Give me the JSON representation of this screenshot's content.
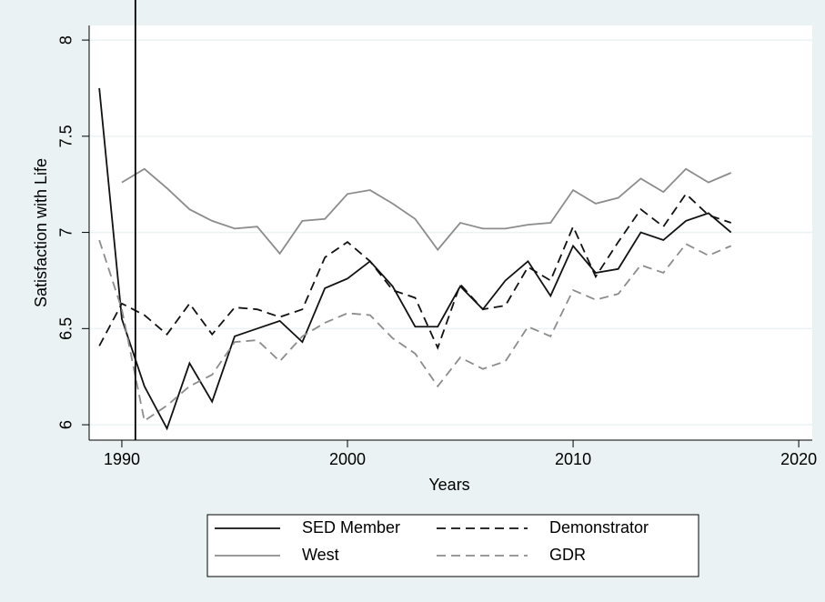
{
  "chart_data": {
    "type": "line",
    "y_label": "Satisfaction with Life",
    "x_label": "Years",
    "x": [
      1989,
      1990,
      1991,
      1992,
      1993,
      1994,
      1995,
      1996,
      1997,
      1998,
      1999,
      2000,
      2001,
      2002,
      2003,
      2004,
      2005,
      2006,
      2007,
      2008,
      2009,
      2010,
      2011,
      2012,
      2013,
      2014,
      2015,
      2016,
      2017
    ],
    "series": [
      {
        "name": "SED Member",
        "color": "#111111",
        "dash": "solid",
        "values": [
          7.75,
          6.55,
          6.2,
          5.98,
          6.32,
          6.12,
          6.46,
          6.5,
          6.54,
          6.43,
          6.71,
          6.76,
          6.85,
          6.72,
          6.51,
          6.51,
          6.72,
          6.6,
          6.75,
          6.85,
          6.67,
          6.93,
          6.79,
          6.81,
          7.0,
          6.96,
          7.06,
          7.1,
          7.0
        ]
      },
      {
        "name": "Demonstrator",
        "color": "#111111",
        "dash": "dashed",
        "values": [
          6.41,
          6.63,
          6.57,
          6.47,
          6.63,
          6.47,
          6.61,
          6.6,
          6.56,
          6.6,
          6.87,
          6.95,
          6.85,
          6.7,
          6.66,
          6.4,
          6.73,
          6.6,
          6.62,
          6.82,
          6.75,
          7.03,
          6.77,
          6.95,
          7.12,
          7.03,
          7.2,
          7.09,
          7.05
        ]
      },
      {
        "name": "West",
        "color": "#8c8c8c",
        "dash": "solid",
        "values": [
          null,
          7.26,
          7.33,
          7.23,
          7.12,
          7.06,
          7.02,
          7.03,
          6.89,
          7.06,
          7.07,
          7.2,
          7.22,
          7.15,
          7.07,
          6.91,
          7.05,
          7.02,
          7.02,
          7.04,
          7.05,
          7.22,
          7.15,
          7.18,
          7.28,
          7.21,
          7.33,
          7.26,
          7.31
        ]
      },
      {
        "name": "GDR",
        "color": "#8c8c8c",
        "dash": "dashed",
        "values": [
          6.96,
          6.6,
          6.02,
          6.1,
          6.2,
          6.26,
          6.43,
          6.44,
          6.33,
          6.46,
          6.53,
          6.58,
          6.57,
          6.45,
          6.37,
          6.2,
          6.35,
          6.29,
          6.33,
          6.51,
          6.46,
          6.7,
          6.65,
          6.68,
          6.83,
          6.79,
          6.94,
          6.88,
          6.93
        ]
      }
    ],
    "xlim": [
      1988.55,
      2020.6
    ],
    "xticks": [
      1990,
      2000,
      2010,
      2020
    ],
    "ylim": [
      5.92,
      8.076
    ],
    "yticks": [
      6,
      6.5,
      7,
      7.5,
      8
    ],
    "xline": 1990.6,
    "grid": true
  }
}
